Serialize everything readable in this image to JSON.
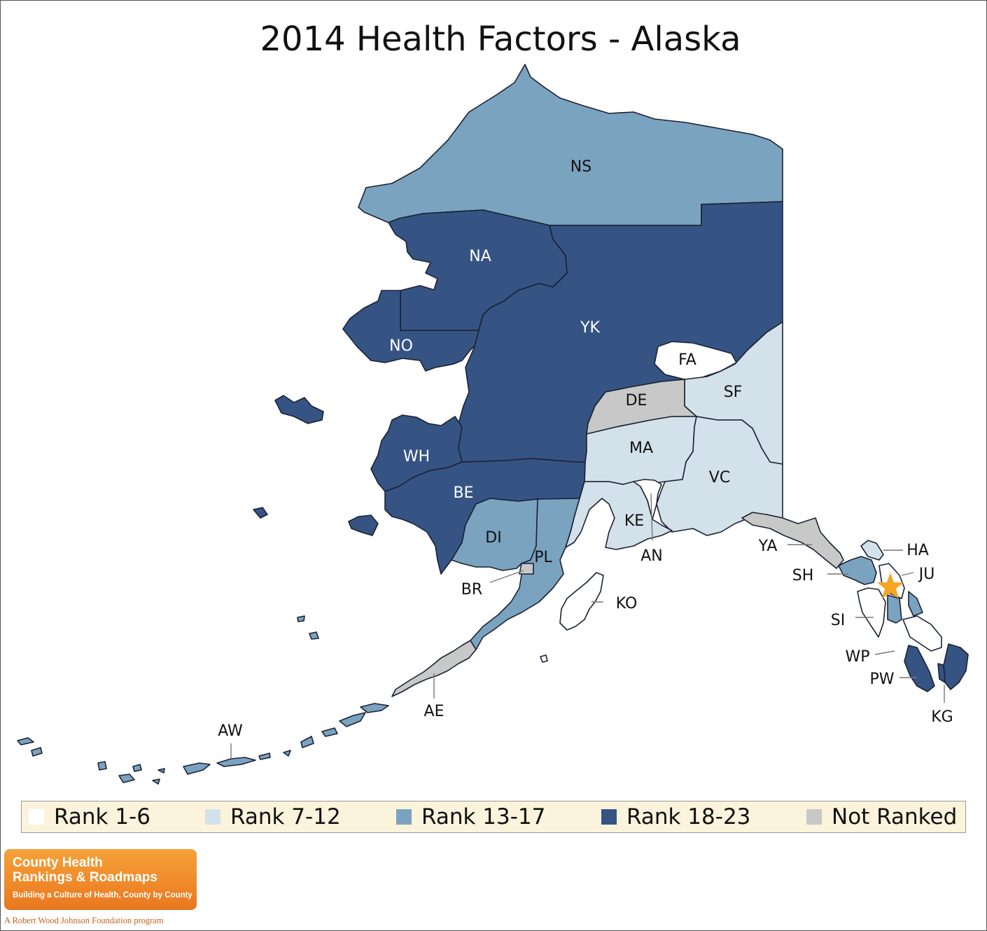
{
  "title": "2014 Health Factors - Alaska",
  "colors": {
    "rank_1_6": "#ffffff",
    "rank_7_12": "#d3e1ea",
    "rank_13_17": "#7aa3c0",
    "rank_18_23": "#355484",
    "not_ranked": "#c8c8c8",
    "star": "#f6a623",
    "legend_bg": "#fbf3dc"
  },
  "legend": [
    {
      "label": "Rank 1-6",
      "color": "#ffffff"
    },
    {
      "label": "Rank 7-12",
      "color": "#d3e1ea"
    },
    {
      "label": "Rank 13-17",
      "color": "#7aa3c0"
    },
    {
      "label": "Rank 18-23",
      "color": "#355484"
    },
    {
      "label": "Not Ranked",
      "color": "#c8c8c8"
    }
  ],
  "regions": {
    "NS": {
      "label": "NS",
      "category": "Rank 13-17"
    },
    "NA": {
      "label": "NA",
      "category": "Rank 18-23"
    },
    "NO": {
      "label": "NO",
      "category": "Rank 18-23"
    },
    "YK": {
      "label": "YK",
      "category": "Rank 18-23"
    },
    "FA": {
      "label": "FA",
      "category": "Rank 1-6"
    },
    "SF": {
      "label": "SF",
      "category": "Rank 7-12"
    },
    "DE": {
      "label": "DE",
      "category": "Not Ranked"
    },
    "MA": {
      "label": "MA",
      "category": "Rank 7-12"
    },
    "VC": {
      "label": "VC",
      "category": "Rank 7-12"
    },
    "WH": {
      "label": "WH",
      "category": "Rank 18-23"
    },
    "BE": {
      "label": "BE",
      "category": "Rank 18-23"
    },
    "DI": {
      "label": "DI",
      "category": "Rank 13-17"
    },
    "PL": {
      "label": "PL",
      "category": "Rank 13-17"
    },
    "KE": {
      "label": "KE",
      "category": "Rank 7-12"
    },
    "AN": {
      "label": "AN",
      "category": "Rank 1-6"
    },
    "BR": {
      "label": "BR",
      "category": "Not Ranked"
    },
    "KO": {
      "label": "KO",
      "category": "Rank 1-6"
    },
    "YA": {
      "label": "YA",
      "category": "Not Ranked"
    },
    "SH": {
      "label": "SH",
      "category": "Rank 13-17"
    },
    "HA": {
      "label": "HA",
      "category": "Rank 7-12"
    },
    "JU": {
      "label": "JU",
      "category": "Rank 1-6"
    },
    "SI": {
      "label": "SI",
      "category": "Rank 1-6"
    },
    "WP": {
      "label": "WP",
      "category": "Rank 1-6"
    },
    "PW": {
      "label": "PW",
      "category": "Rank 18-23"
    },
    "KG": {
      "label": "KG",
      "category": "Rank 18-23"
    },
    "AE": {
      "label": "AE",
      "category": "Not Ranked"
    },
    "AW": {
      "label": "AW",
      "category": "Rank 13-17"
    }
  },
  "logo": {
    "line1": "County Health",
    "line2": "Rankings & Roadmaps",
    "tagline": "Building a Culture of Health, County by County",
    "sponsor": "A Robert Wood Johnson Foundation program"
  }
}
